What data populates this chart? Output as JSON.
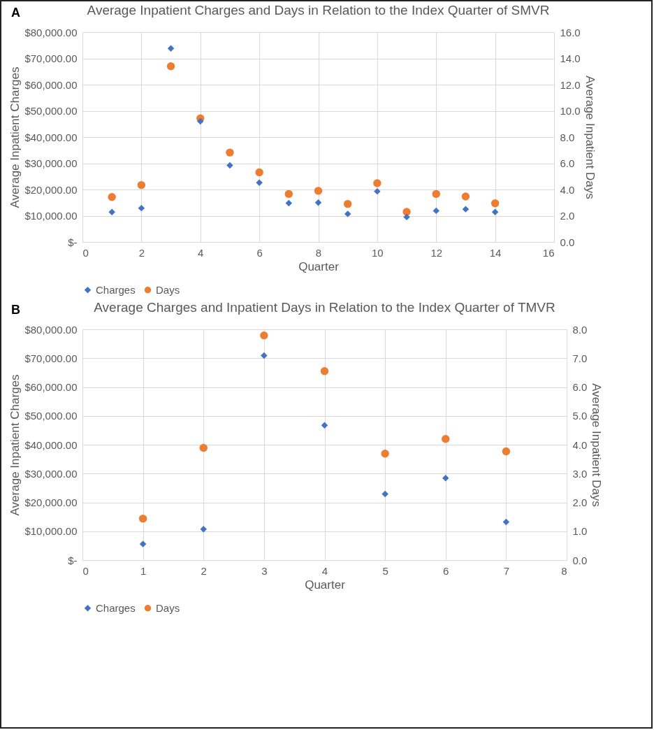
{
  "chart_data": [
    {
      "type": "scatter",
      "title": "Average Inpatient Charges and Days in Relation to the Index Quarter of SMVR",
      "xlabel": "Quarter",
      "ylabel": "Average Inpatient Charges",
      "y2label": "Average Inpatient Days",
      "annotations": [
        "A"
      ],
      "x": [
        1,
        2,
        3,
        4,
        5,
        6,
        7,
        8,
        9,
        10,
        11,
        12,
        13,
        14
      ],
      "series": [
        {
          "name": "Charges",
          "color": "#4472c4",
          "marker": "diamond",
          "values": [
            11400,
            12900,
            73800,
            46000,
            29200,
            22600,
            14800,
            15000,
            10700,
            19300,
            9500,
            11900,
            12500,
            11400
          ]
        },
        {
          "name": "Days",
          "color": "#ed7d31",
          "marker": "circle",
          "axis": "y2",
          "values": [
            3.43,
            4.34,
            13.4,
            9.43,
            6.82,
            5.31,
            3.66,
            3.9,
            2.9,
            4.48,
            2.29,
            3.66,
            3.47,
            2.95
          ]
        }
      ],
      "xlim": [
        0,
        16
      ],
      "xticks": [
        0,
        2,
        4,
        6,
        8,
        10,
        12,
        14,
        16
      ],
      "ylim": [
        0,
        80000
      ],
      "yticks": [
        {
          "value": 0,
          "label": "$-"
        },
        {
          "value": 10000,
          "label": "$10,000.00"
        },
        {
          "value": 20000,
          "label": "$20,000.00"
        },
        {
          "value": 30000,
          "label": "$30,000.00"
        },
        {
          "value": 40000,
          "label": "$40,000.00"
        },
        {
          "value": 50000,
          "label": "$50,000.00"
        },
        {
          "value": 60000,
          "label": "$60,000.00"
        },
        {
          "value": 70000,
          "label": "$70,000.00"
        },
        {
          "value": 80000,
          "label": "$80,000.00"
        }
      ],
      "y2lim": [
        0,
        16
      ],
      "y2ticks": [
        {
          "value": 0,
          "label": "0.0"
        },
        {
          "value": 2,
          "label": "2.0"
        },
        {
          "value": 4,
          "label": "4.0"
        },
        {
          "value": 6,
          "label": "6.0"
        },
        {
          "value": 8,
          "label": "8.0"
        },
        {
          "value": 10,
          "label": "10.0"
        },
        {
          "value": 12,
          "label": "12.0"
        },
        {
          "value": 14,
          "label": "14.0"
        },
        {
          "value": 16,
          "label": "16.0"
        }
      ],
      "grid": true,
      "legend": "bottom"
    },
    {
      "type": "scatter",
      "title": "Average Charges and Inpatient Days in Relation to the Index Quarter of TMVR",
      "xlabel": "Quarter",
      "ylabel": "Average Inpatient Charges",
      "y2label": "Average Inpatient Days",
      "annotations": [
        "B"
      ],
      "x": [
        1,
        2,
        3,
        4,
        5,
        6,
        7
      ],
      "series": [
        {
          "name": "Charges",
          "color": "#4472c4",
          "marker": "diamond",
          "values": [
            5600,
            10700,
            70900,
            46700,
            22900,
            28400,
            13200
          ]
        },
        {
          "name": "Days",
          "color": "#ed7d31",
          "marker": "circle",
          "axis": "y2",
          "values": [
            1.44,
            3.89,
            7.79,
            6.55,
            3.69,
            4.2,
            3.77
          ]
        }
      ],
      "xlim": [
        0,
        8
      ],
      "xticks": [
        0,
        1,
        2,
        3,
        4,
        5,
        6,
        7,
        8
      ],
      "ylim": [
        0,
        80000
      ],
      "yticks": [
        {
          "value": 0,
          "label": "$-"
        },
        {
          "value": 10000,
          "label": "$10,000.00"
        },
        {
          "value": 20000,
          "label": "$20,000.00"
        },
        {
          "value": 30000,
          "label": "$30,000.00"
        },
        {
          "value": 40000,
          "label": "$40,000.00"
        },
        {
          "value": 50000,
          "label": "$50,000.00"
        },
        {
          "value": 60000,
          "label": "$60,000.00"
        },
        {
          "value": 70000,
          "label": "$70,000.00"
        },
        {
          "value": 80000,
          "label": "$80,000.00"
        }
      ],
      "y2lim": [
        0,
        8
      ],
      "y2ticks": [
        {
          "value": 0,
          "label": "0.0"
        },
        {
          "value": 1,
          "label": "1.0"
        },
        {
          "value": 2,
          "label": "2.0"
        },
        {
          "value": 3,
          "label": "3.0"
        },
        {
          "value": 4,
          "label": "4.0"
        },
        {
          "value": 5,
          "label": "5.0"
        },
        {
          "value": 6,
          "label": "6.0"
        },
        {
          "value": 7,
          "label": "7.0"
        },
        {
          "value": 8,
          "label": "8.0"
        }
      ],
      "grid": true,
      "legend": "bottom"
    }
  ]
}
